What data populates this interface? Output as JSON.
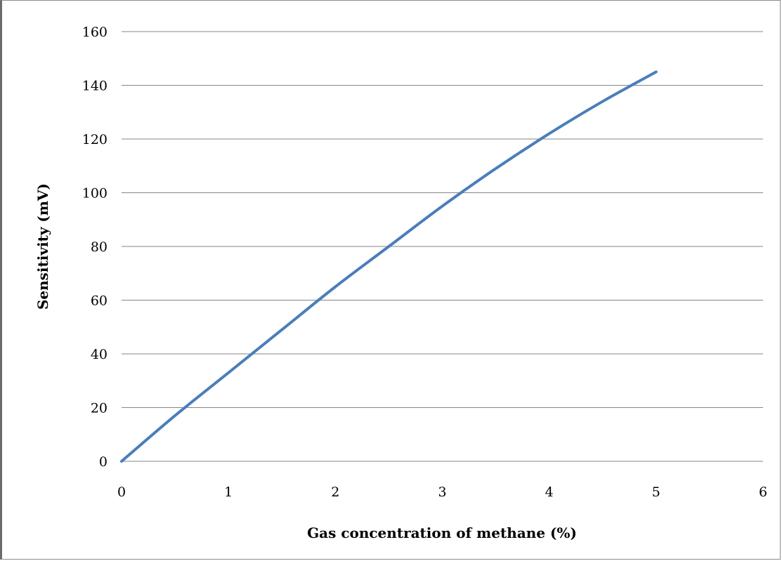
{
  "chart_data": {
    "type": "line",
    "title": "",
    "xlabel": "Gas concentration of methane (%)",
    "ylabel": "Sensitivity (mV)",
    "xlim": [
      0,
      6
    ],
    "ylim": [
      0,
      160
    ],
    "x_ticks": [
      "0",
      "1",
      "2",
      "3",
      "4",
      "5",
      "6"
    ],
    "y_ticks": [
      "0",
      "20",
      "40",
      "60",
      "80",
      "100",
      "120",
      "140",
      "160"
    ],
    "grid": "horizontal",
    "legend": "none",
    "series": [
      {
        "color": "#4a7ebb",
        "x": [
          0,
          0.5,
          1,
          1.5,
          2,
          2.5,
          3,
          3.5,
          4,
          4.5,
          5
        ],
        "y": [
          0,
          17,
          33,
          49,
          65,
          80,
          95,
          109,
          122,
          134,
          145
        ]
      }
    ]
  }
}
